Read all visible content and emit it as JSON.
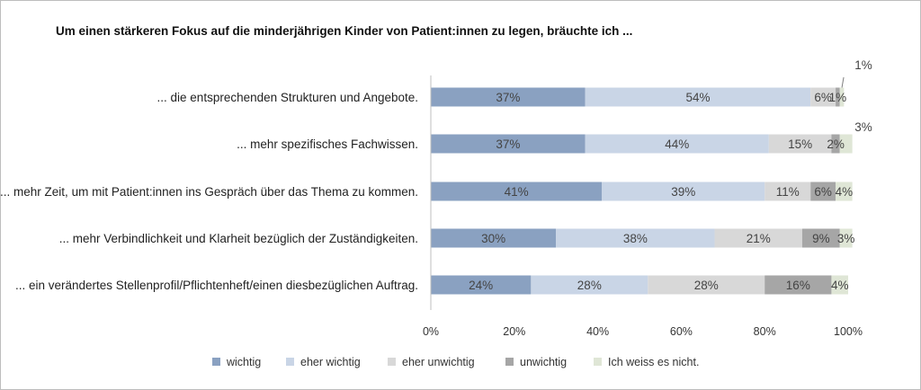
{
  "chart_data": {
    "type": "bar",
    "orientation": "horizontal",
    "stacked": "percent",
    "title": "Um einen stärkeren Fokus auf die minderjährigen Kinder von Patient:innen zu legen, bräuchte ich ...",
    "categories": [
      "... die entsprechenden Strukturen und Angebote.",
      "... mehr spezifisches Fachwissen.",
      "... mehr Zeit, um mit Patient:innen ins Gespräch über das Thema zu kommen.",
      "... mehr Verbindlichkeit und Klarheit bezüglich der Zuständigkeiten.",
      "... ein verändertes Stellenprofil/Pflichtenheft/einen diesbezüglichen Auftrag."
    ],
    "series": [
      {
        "name": "wichtig",
        "values": [
          37,
          37,
          41,
          30,
          24
        ],
        "labels": [
          "37%",
          "37%",
          "41%",
          "30%",
          "24%"
        ]
      },
      {
        "name": "eher wichtig",
        "values": [
          54,
          44,
          39,
          38,
          28
        ],
        "labels": [
          "54%",
          "44%",
          "39%",
          "38%",
          "28%"
        ]
      },
      {
        "name": "eher unwichtig",
        "values": [
          6,
          15,
          11,
          21,
          28
        ],
        "labels": [
          "6%",
          "15%",
          "11%",
          "21%",
          "28%"
        ]
      },
      {
        "name": "unwichtig",
        "values": [
          1,
          2,
          6,
          9,
          16
        ],
        "labels": [
          "1%",
          "2%",
          "6%",
          "9%",
          "16%"
        ]
      },
      {
        "name": "Ich weiss es nicht.",
        "values": [
          1,
          3,
          4,
          3,
          4
        ],
        "labels": [
          "1%",
          "3%",
          "4%",
          "3%",
          "4%"
        ]
      }
    ],
    "callouts": [
      {
        "category_index": 0,
        "series_index": 4,
        "text": "1%"
      },
      {
        "category_index": 1,
        "series_index": 4,
        "text": "3%"
      }
    ],
    "xlim": [
      0,
      100
    ],
    "xticks": [
      "0%",
      "20%",
      "40%",
      "60%",
      "80%",
      "100%"
    ],
    "xlabel": "",
    "ylabel": "",
    "grid": false,
    "legend_position": "bottom",
    "colors": [
      "#8aa1c1",
      "#c9d5e6",
      "#d8d8d8",
      "#a6a6a6",
      "#dfe6d6"
    ]
  }
}
